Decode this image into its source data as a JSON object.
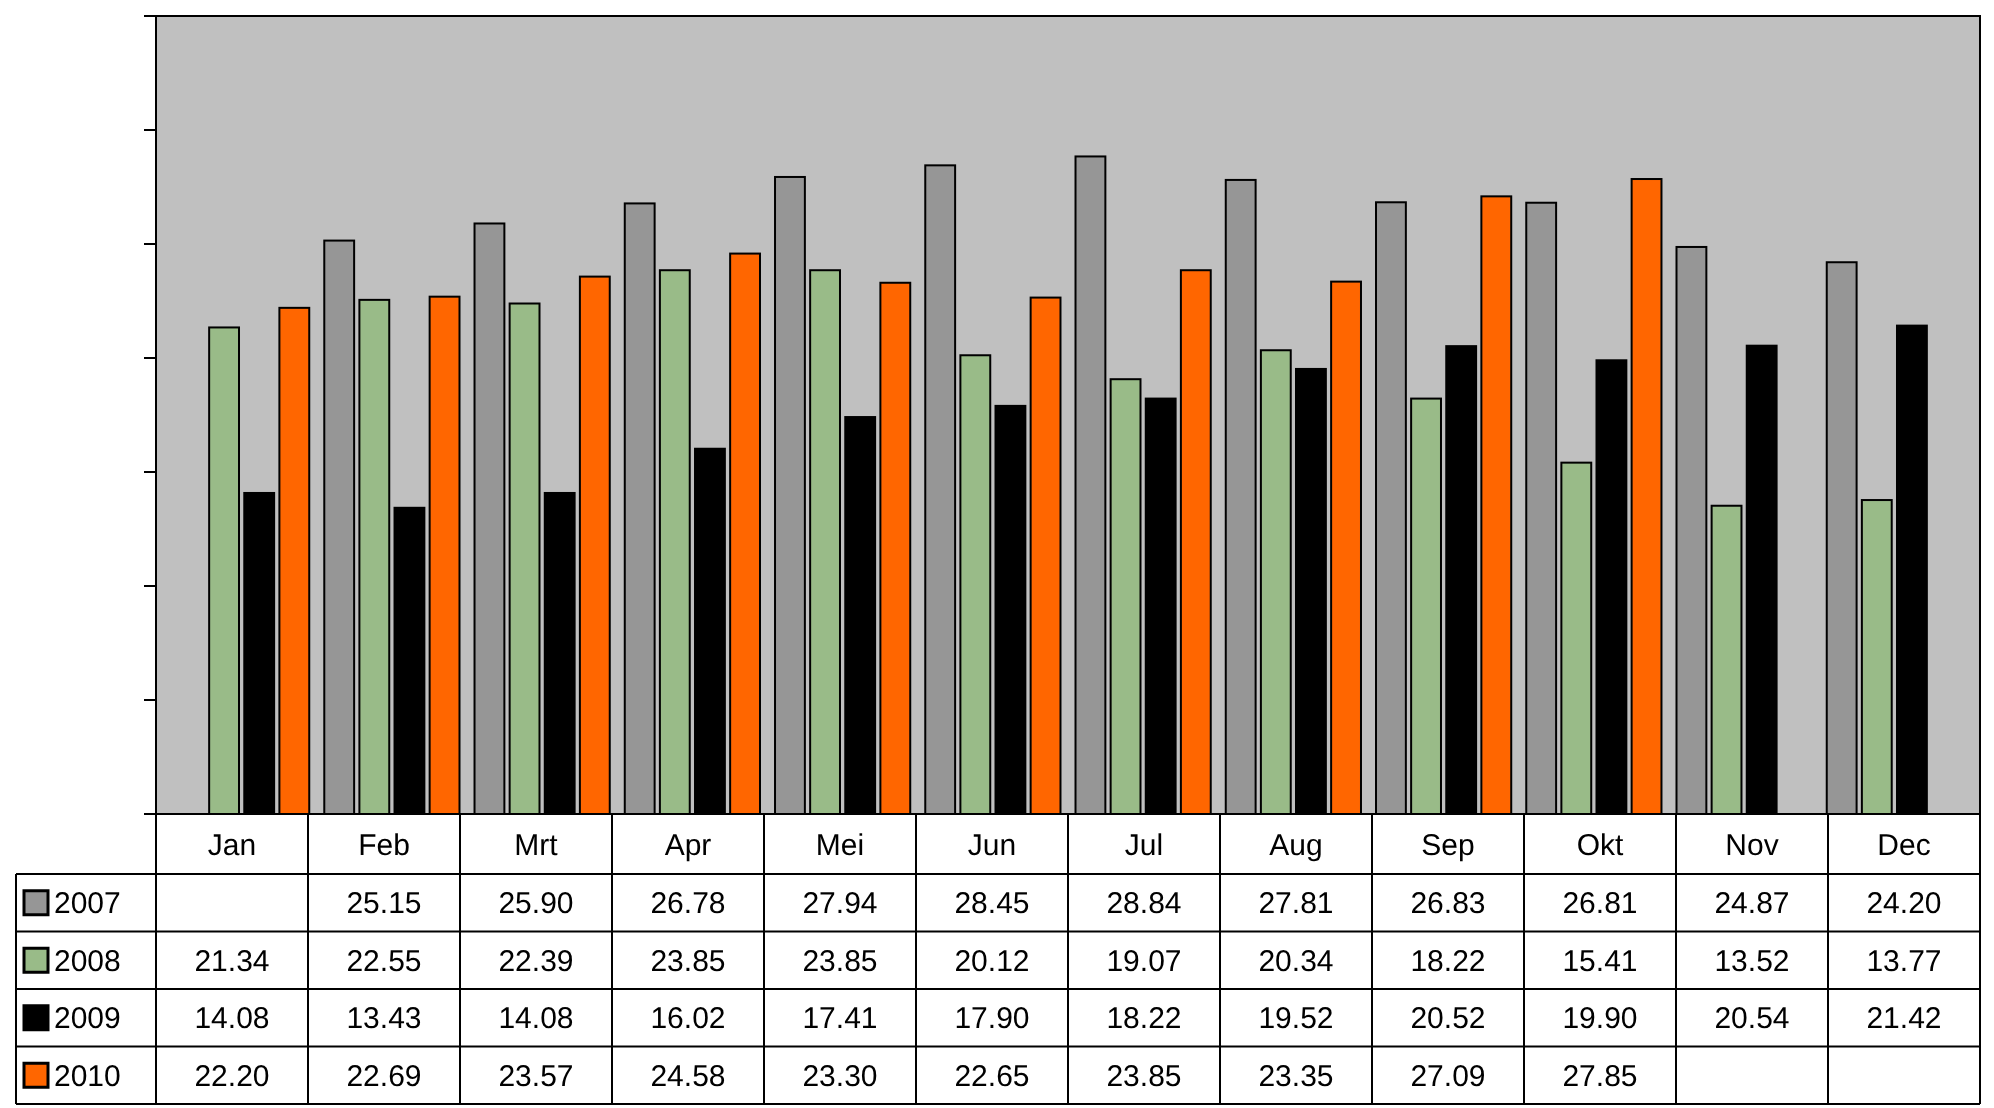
{
  "chart_data": {
    "type": "bar",
    "categories": [
      "Jan",
      "Feb",
      "Mrt",
      "Apr",
      "Mei",
      "Jun",
      "Jul",
      "Aug",
      "Sep",
      "Okt",
      "Nov",
      "Dec"
    ],
    "series": [
      {
        "name": "2007",
        "color": "#969696",
        "values": [
          null,
          25.15,
          25.9,
          26.78,
          27.94,
          28.45,
          28.84,
          27.81,
          26.83,
          26.81,
          24.87,
          24.2
        ],
        "value_labels": [
          null,
          "25.15",
          "25.90",
          "26.78",
          "27.94",
          "28.45",
          "28.84",
          "27.81",
          "26.83",
          "26.81",
          "24.87",
          "24.20"
        ]
      },
      {
        "name": "2008",
        "color": "#99bb88",
        "values": [
          21.34,
          22.55,
          22.39,
          23.85,
          23.85,
          20.12,
          19.07,
          20.34,
          18.22,
          15.41,
          13.52,
          13.77
        ],
        "value_labels": [
          "21.34",
          "22.55",
          "22.39",
          "23.85",
          "23.85",
          "20.12",
          "19.07",
          "20.34",
          "18.22",
          "15.41",
          "13.52",
          "13.77"
        ]
      },
      {
        "name": "2009",
        "color": "#000000",
        "values": [
          14.08,
          13.43,
          14.08,
          16.02,
          17.41,
          17.9,
          18.22,
          19.52,
          20.52,
          19.9,
          20.54,
          21.42
        ],
        "value_labels": [
          "14.08",
          "13.43",
          "14.08",
          "16.02",
          "17.41",
          "17.90",
          "18.22",
          "19.52",
          "20.52",
          "19.90",
          "20.54",
          "21.42"
        ]
      },
      {
        "name": "2010",
        "color": "#ff6600",
        "values": [
          22.2,
          22.69,
          23.57,
          24.58,
          23.3,
          22.65,
          23.85,
          23.35,
          27.09,
          27.85,
          null,
          null
        ],
        "value_labels": [
          "22.20",
          "22.69",
          "23.57",
          "24.58",
          "23.30",
          "22.65",
          "23.85",
          "23.35",
          "27.09",
          "27.85",
          null,
          null
        ]
      }
    ],
    "ylim": [
      0,
      35
    ],
    "yticks": [
      {
        "value": 0,
        "label": null
      },
      {
        "value": 5,
        "label": null
      },
      {
        "value": 10,
        "label": null
      },
      {
        "value": 15,
        "label": null
      },
      {
        "value": 20,
        "label": null
      },
      {
        "value": 25,
        "label": null
      },
      {
        "value": 30,
        "label": null
      },
      {
        "value": 35,
        "label": null
      }
    ],
    "tick_labels": "x",
    "legend": "bottom",
    "grid": false
  }
}
